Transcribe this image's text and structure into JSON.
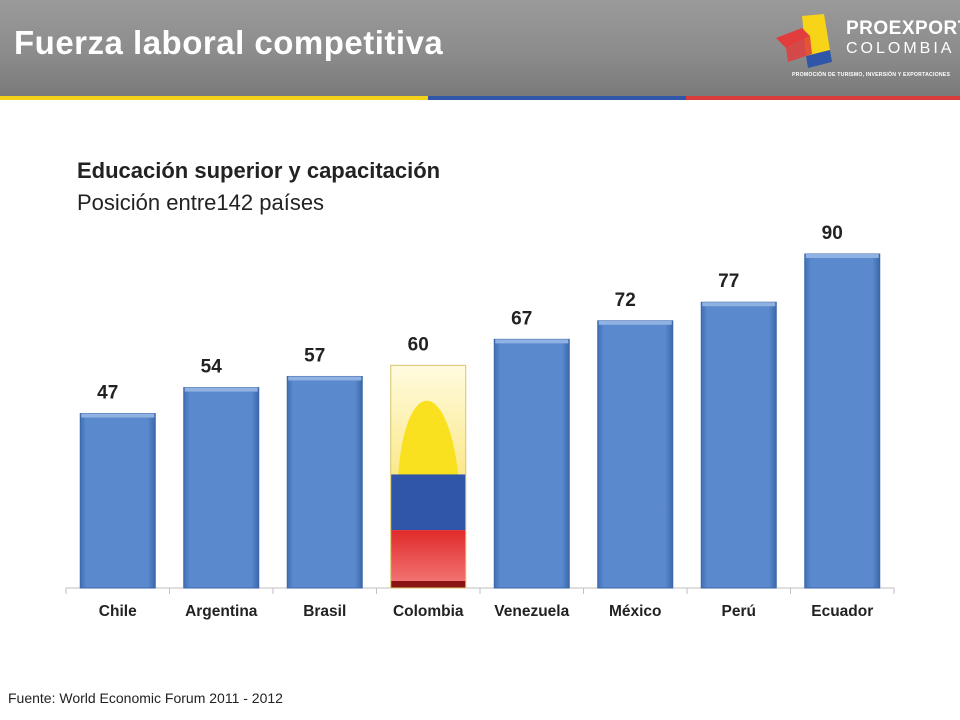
{
  "header": {
    "title": "Fuerza laboral competitiva",
    "logo": {
      "line1": "PROEXPORT",
      "line2": "COLOMBIA",
      "tagline": "PROMOCIÓN DE TURISMO, INVERSIÓN Y EXPORTACIONES"
    }
  },
  "footer": {
    "source": "Fuente: World Economic Forum 2011 - 2012"
  },
  "colors": {
    "bar": "#5a8acd",
    "flag_yellow": "#f9e11f",
    "flag_blue": "#2f56a8",
    "flag_red": "#e23c3c",
    "header_gray": "#8c8c8c"
  },
  "chart_data": {
    "type": "bar",
    "title": "Educación superior y capacitación",
    "subtitle": "Posición entre142 países",
    "categories": [
      "Chile",
      "Argentina",
      "Brasil",
      "Colombia",
      "Venezuela",
      "México",
      "Perú",
      "Ecuador"
    ],
    "values": [
      47,
      54,
      57,
      60,
      67,
      72,
      77,
      90
    ],
    "highlight": "Colombia",
    "ylim": [
      0,
      90
    ],
    "grid": false,
    "legend": "none"
  }
}
